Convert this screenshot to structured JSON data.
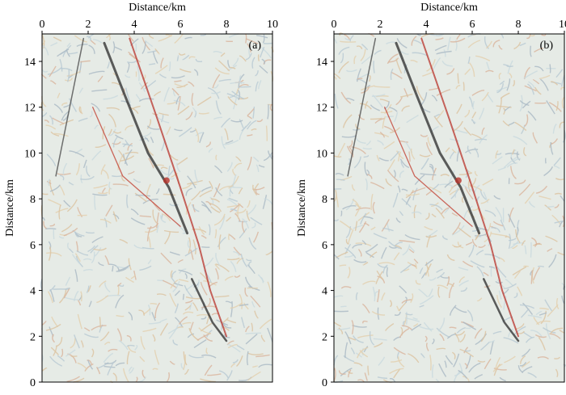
{
  "chart_data": [
    {
      "type": "image",
      "xlabel": "Distance/km",
      "ylabel": "Distance/km",
      "annotation": "(a)",
      "xlim": [
        0,
        10
      ],
      "ylim": [
        0,
        15.2
      ],
      "xticks": [
        0,
        2,
        4,
        6,
        8,
        10
      ],
      "yticks": [
        0,
        2,
        4,
        6,
        8,
        10,
        12,
        14
      ]
    },
    {
      "type": "image",
      "xlabel": "Distance/km",
      "ylabel": "Distance/km",
      "annotation": "(b)",
      "xlim": [
        0,
        10
      ],
      "ylim": [
        0,
        15.2
      ],
      "xticks": [
        0,
        2,
        4,
        6,
        8,
        10
      ],
      "yticks": [
        0,
        2,
        4,
        6,
        8,
        10,
        12,
        14
      ]
    }
  ]
}
